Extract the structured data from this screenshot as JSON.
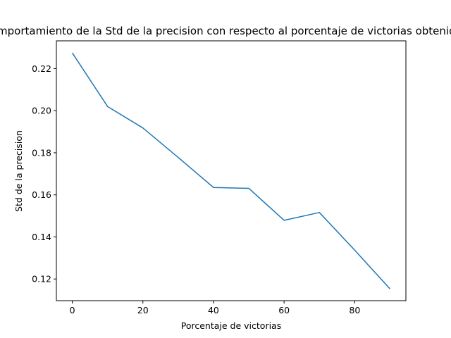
{
  "chart_data": {
    "type": "line",
    "title": "Comportamiento de la Std de la precision con respecto al porcentaje de victorias obtenidas",
    "xlabel": "Porcentaje de victorias",
    "ylabel": "Std de la precision",
    "x": [
      0,
      10,
      20,
      30,
      40,
      50,
      60,
      70,
      80,
      90
    ],
    "series": [
      {
        "values": [
          0.2275,
          0.202,
          0.1918,
          0.1778,
          0.1635,
          0.1631,
          0.1479,
          0.1516,
          0.1337,
          0.1153
        ]
      }
    ],
    "xlim": [
      -4.5,
      94.5
    ],
    "ylim": [
      0.1097,
      0.2332
    ],
    "xticks": [
      0,
      20,
      40,
      60,
      80
    ],
    "yticks": [
      0.12,
      0.14,
      0.16,
      0.18,
      0.2,
      0.22
    ],
    "xtick_labels": [
      "0",
      "20",
      "40",
      "60",
      "80"
    ],
    "ytick_labels": [
      "0.12",
      "0.14",
      "0.16",
      "0.18",
      "0.20",
      "0.22"
    ],
    "grid": false,
    "line_color": "#1f77b4"
  }
}
